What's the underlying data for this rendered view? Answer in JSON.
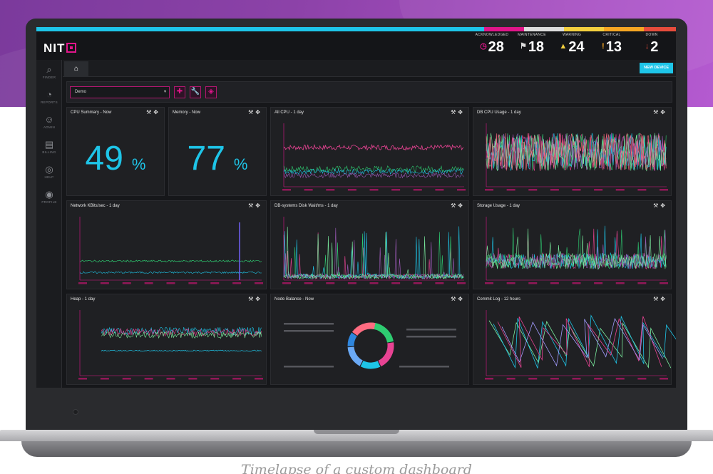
{
  "caption": "Timelapse of a custom dashboard",
  "app": {
    "logo_text": "NIT"
  },
  "colors": {
    "accent": "#e0168a",
    "cyan": "#1ec5e8",
    "acknowledged": "#e0168a",
    "maintenance": "#dddddd",
    "warning": "#f4d03f",
    "critical": "#f5a623",
    "down": "#e74c3c"
  },
  "counters": [
    {
      "label": "ACKNOWLEDGED",
      "value": "28",
      "icon": "clock-icon",
      "glyph": "◷",
      "color": "#e0168a"
    },
    {
      "label": "MAINTENANCE",
      "value": "18",
      "icon": "flag-icon",
      "glyph": "⚑",
      "color": "#dddddd"
    },
    {
      "label": "WARNING",
      "value": "24",
      "icon": "warning-icon",
      "glyph": "▲",
      "color": "#f4d03f"
    },
    {
      "label": "CRITICAL",
      "value": "13",
      "icon": "critical-icon",
      "glyph": "!",
      "color": "#f5a623"
    },
    {
      "label": "DOWN",
      "value": "2",
      "icon": "down-icon",
      "glyph": "↓",
      "color": "#e74c3c"
    }
  ],
  "sidebar": {
    "items": [
      {
        "label": "FINDER",
        "icon": "search-icon",
        "glyph": "⌕"
      },
      {
        "label": "REPORTS",
        "icon": "pie-chart-icon",
        "glyph": "◔"
      },
      {
        "label": "ADMIN",
        "icon": "users-icon",
        "glyph": "☺"
      },
      {
        "label": "BILLING",
        "icon": "billing-icon",
        "glyph": "▤"
      },
      {
        "label": "HELP",
        "icon": "help-icon",
        "glyph": "◎"
      },
      {
        "label": "PROFILE",
        "icon": "profile-icon",
        "glyph": "◉"
      }
    ]
  },
  "tabs": {
    "home_icon": "⌂",
    "new_device_label": "NEW DEVICE"
  },
  "toolbar": {
    "dashboard_select_value": "Demo",
    "caret": "▾"
  },
  "panels": {
    "cpu_summary": {
      "title": "CPU Summary - Now",
      "value": "49",
      "unit": "%"
    },
    "memory": {
      "title": "Memory - Now",
      "value": "77",
      "unit": "%"
    },
    "all_cpu": {
      "title": "All CPU - 1 day"
    },
    "db_cpu": {
      "title": "DB CPU Usage - 1 day"
    },
    "network": {
      "title": "Network KBits/sec - 1 day"
    },
    "disk_wait": {
      "title": "DB-systems Disk Wait/ms - 1 day"
    },
    "storage": {
      "title": "Storage Usage - 1 day"
    },
    "heap": {
      "title": "Heap - 1 day"
    },
    "node_balance": {
      "title": "Node Balance - Now"
    },
    "commit_log": {
      "title": "Commit Log - 12 hours"
    }
  },
  "panel_tools": "🔧✥"
}
